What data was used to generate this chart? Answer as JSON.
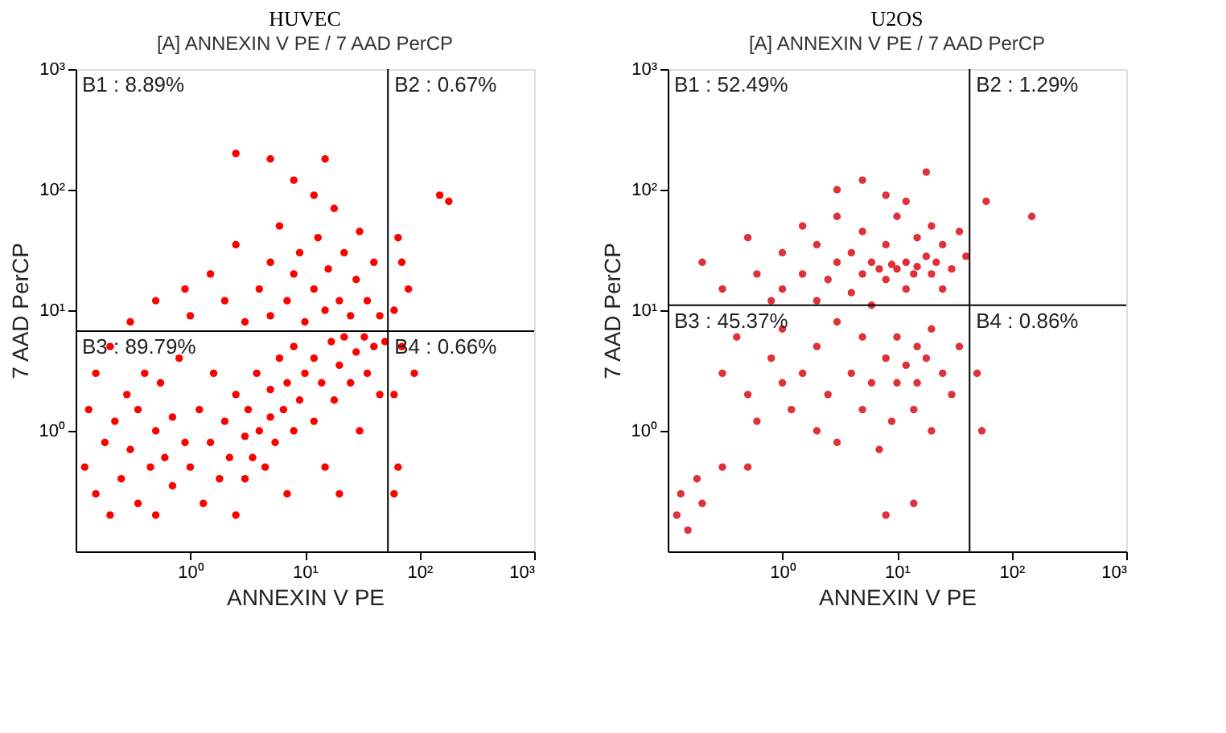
{
  "chart_data": [
    {
      "type": "scatter",
      "title": "HUVEC",
      "subtitle": "[A] ANNEXIN V PE / 7 AAD PerCP",
      "xlabel": "ANNEXIN V PE",
      "ylabel": "7 AAD PerCP",
      "log": "xy",
      "grid": false,
      "marker": "circle",
      "xlim": [
        0.1,
        1000
      ],
      "ylim": [
        0.1,
        1000
      ],
      "xticks": [
        {
          "value": 1,
          "label": "10⁰"
        },
        {
          "value": 10,
          "label": "10¹"
        },
        {
          "value": 100,
          "label": "10²"
        },
        {
          "value": 1000,
          "label": "10³"
        }
      ],
      "yticks": [
        {
          "value": 1,
          "label": "10⁰"
        },
        {
          "value": 10,
          "label": "10¹"
        },
        {
          "value": 100,
          "label": "10²"
        },
        {
          "value": 1000,
          "label": "10³"
        }
      ],
      "ref_lines": [
        {
          "axis": "x",
          "value": 53,
          "color": "#000000"
        },
        {
          "axis": "y",
          "value": 6.7,
          "color": "#000000"
        }
      ],
      "annotations": [
        "B1 : 8.89%",
        "B2 : 0.67%",
        "B3 : 89.79%",
        "B4 : 0.66%"
      ],
      "series": [
        {
          "color": "#ff0000",
          "x": [
            0.12,
            0.13,
            0.15,
            0.15,
            0.18,
            0.2,
            0.2,
            0.22,
            0.25,
            0.28,
            0.3,
            0.3,
            0.35,
            0.35,
            0.4,
            0.45,
            0.5,
            0.5,
            0.55,
            0.6,
            0.7,
            0.7,
            0.8,
            0.9,
            0.9,
            1,
            1.2,
            1.3,
            1.5,
            1.6,
            1.8,
            2,
            2.2,
            2.5,
            2.5,
            3,
            3,
            3.2,
            3.5,
            3.8,
            4,
            4.5,
            5,
            5,
            5.5,
            6,
            6.5,
            7,
            7,
            8,
            8,
            9,
            10,
            12,
            12,
            14,
            15,
            17,
            18,
            20,
            22,
            25,
            28,
            30,
            33,
            35,
            40,
            45,
            50,
            20,
            0.5,
            1,
            1.5,
            2,
            2.5,
            3,
            4,
            5,
            5,
            6,
            7,
            8,
            9,
            10,
            12,
            13,
            15,
            16,
            18,
            20,
            22,
            25,
            28,
            30,
            35,
            40,
            45,
            5,
            2.5,
            8,
            15,
            12,
            60,
            70,
            80,
            150,
            180,
            65,
            60,
            65,
            70,
            90,
            60
          ],
          "values": [
            0.5,
            1.5,
            0.3,
            3,
            0.8,
            0.2,
            5,
            1.2,
            0.4,
            2,
            0.7,
            8,
            0.25,
            1.5,
            3,
            0.5,
            1,
            0.2,
            2.5,
            0.6,
            1.3,
            0.35,
            4,
            0.8,
            15,
            0.5,
            1.5,
            0.25,
            0.8,
            3,
            0.4,
            1.2,
            0.6,
            2,
            0.2,
            0.9,
            0.4,
            1.5,
            0.6,
            3,
            1,
            0.5,
            1.3,
            2.2,
            0.8,
            4,
            1.5,
            0.3,
            2.5,
            1,
            5,
            1.8,
            3,
            1.2,
            4,
            2.5,
            0.5,
            5.5,
            1.8,
            3.5,
            6,
            2.5,
            4.5,
            1,
            6,
            3,
            5,
            2,
            5.5,
            0.3,
            12,
            9,
            20,
            12,
            35,
            8,
            15,
            25,
            9,
            50,
            12,
            20,
            30,
            8,
            15,
            40,
            10,
            22,
            70,
            12,
            30,
            9,
            18,
            45,
            12,
            25,
            9,
            180,
            200,
            120,
            180,
            90,
            10,
            25,
            15,
            90,
            80,
            40,
            2,
            0.5,
            5,
            3,
            0.3
          ]
        }
      ]
    },
    {
      "type": "scatter",
      "title": "U2OS",
      "subtitle": "[A] ANNEXIN V PE / 7 AAD PerCP",
      "xlabel": "ANNEXIN V PE",
      "ylabel": "7 AAD PerCP",
      "log": "xy",
      "grid": false,
      "marker": "circle",
      "xlim": [
        0.1,
        1000
      ],
      "ylim": [
        0.1,
        1000
      ],
      "xticks": [
        {
          "value": 1,
          "label": "10⁰"
        },
        {
          "value": 10,
          "label": "10¹"
        },
        {
          "value": 100,
          "label": "10²"
        },
        {
          "value": 1000,
          "label": "10³"
        }
      ],
      "yticks": [
        {
          "value": 1,
          "label": "10⁰"
        },
        {
          "value": 10,
          "label": "10¹"
        },
        {
          "value": 100,
          "label": "10²"
        },
        {
          "value": 1000,
          "label": "10³"
        }
      ],
      "ref_lines": [
        {
          "axis": "x",
          "value": 43,
          "color": "#000000"
        },
        {
          "axis": "y",
          "value": 11,
          "color": "#000000"
        }
      ],
      "annotations": [
        "B1 : 52.49%",
        "B2 : 1.29%",
        "B3 : 45.37%",
        "B4 : 0.86%"
      ],
      "series": [
        {
          "color": "#e0303a",
          "x": [
            0.2,
            0.3,
            0.5,
            0.6,
            0.8,
            1,
            1,
            1.5,
            1.5,
            2,
            2,
            2.5,
            3,
            3,
            4,
            4,
            5,
            5,
            6,
            6,
            7,
            8,
            8,
            9,
            10,
            10,
            12,
            12,
            14,
            15,
            15,
            18,
            20,
            20,
            22,
            25,
            25,
            30,
            35,
            40,
            5,
            8,
            12,
            18,
            3,
            0.3,
            0.4,
            0.5,
            0.6,
            0.8,
            1,
            1,
            1.2,
            1.5,
            2,
            2,
            2.5,
            3,
            3,
            4,
            5,
            5,
            6,
            7,
            8,
            9,
            10,
            10,
            12,
            14,
            15,
            15,
            18,
            20,
            20,
            25,
            30,
            35,
            8,
            14,
            0.12,
            0.13,
            0.15,
            0.18,
            0.2,
            0.3,
            0.5,
            60,
            150,
            50,
            55
          ],
          "values": [
            25,
            15,
            40,
            20,
            12,
            30,
            15,
            50,
            20,
            12,
            35,
            18,
            25,
            60,
            14,
            30,
            20,
            45,
            11,
            25,
            22,
            18,
            35,
            24,
            22,
            60,
            25,
            15,
            20,
            40,
            23,
            28,
            20,
            50,
            25,
            15,
            35,
            22,
            45,
            28,
            120,
            90,
            80,
            140,
            100,
            3,
            6,
            2,
            1.2,
            4,
            2.5,
            7,
            1.5,
            3,
            5,
            1,
            2,
            8,
            0.8,
            3,
            1.5,
            6,
            2.5,
            0.7,
            4,
            1.2,
            2.5,
            6,
            3.5,
            1.5,
            5,
            2.5,
            4,
            1,
            7,
            3,
            2,
            5,
            0.2,
            0.25,
            0.2,
            0.3,
            0.15,
            0.4,
            0.25,
            0.5,
            0.5,
            80,
            60,
            3,
            1
          ]
        }
      ]
    }
  ]
}
